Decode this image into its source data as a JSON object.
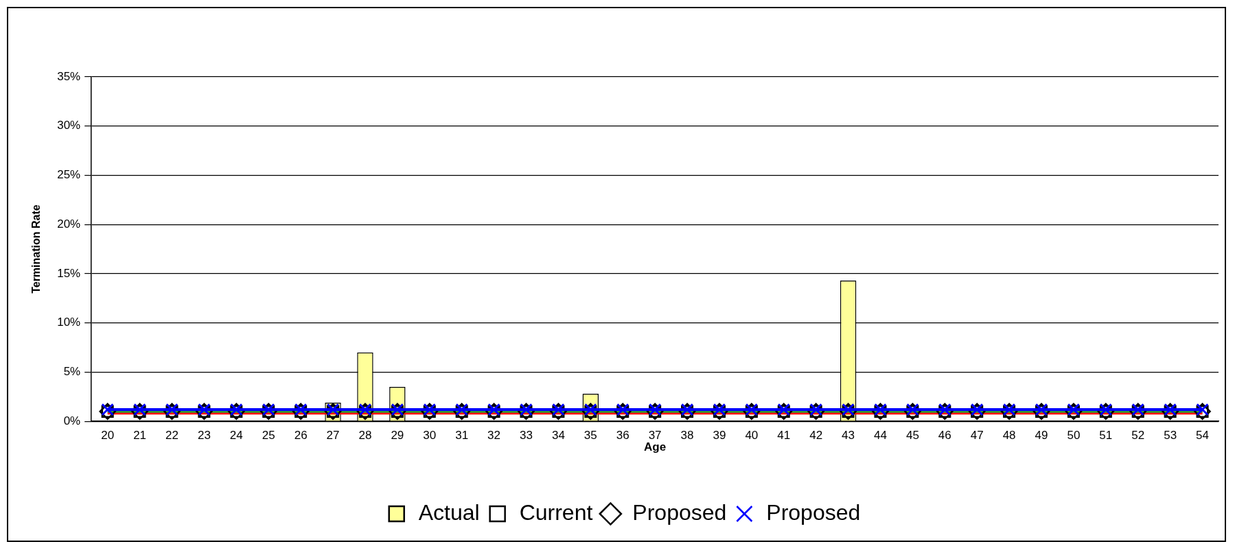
{
  "chart_data": {
    "type": "bar",
    "xlabel": "Age",
    "ylabel": "Termination Rate",
    "categories": [
      "20",
      "21",
      "22",
      "23",
      "24",
      "25",
      "26",
      "27",
      "28",
      "29",
      "30",
      "31",
      "32",
      "33",
      "34",
      "35",
      "36",
      "37",
      "38",
      "39",
      "40",
      "41",
      "42",
      "43",
      "44",
      "45",
      "46",
      "47",
      "48",
      "49",
      "50",
      "51",
      "52",
      "53",
      "54"
    ],
    "series": [
      {
        "name": "Actual",
        "color": "#ffff99",
        "values": [
          0,
          0,
          0,
          0,
          0,
          0,
          0,
          1.9,
          7.0,
          3.5,
          0,
          0,
          0,
          0,
          0,
          2.8,
          0,
          0,
          0,
          0,
          0,
          0,
          0,
          14.3,
          0,
          0,
          0,
          0,
          0,
          0,
          0,
          0,
          0,
          0,
          0
        ]
      },
      {
        "name": "Current",
        "type": "line",
        "color": "#ff0000",
        "marker": "square",
        "values": [
          1.0,
          1.0,
          1.0,
          1.0,
          1.0,
          1.0,
          1.0,
          1.0,
          1.0,
          1.0,
          1.0,
          1.0,
          1.0,
          1.0,
          1.0,
          1.0,
          1.0,
          1.0,
          1.0,
          1.0,
          1.0,
          1.0,
          1.0,
          1.0,
          1.0,
          1.0,
          1.0,
          1.0,
          1.0,
          1.0,
          1.0,
          1.0,
          1.0,
          1.0,
          1.0
        ]
      },
      {
        "name": "Proposed",
        "type": "line",
        "color": "#339933",
        "marker": "diamond",
        "values": [
          1.0,
          1.0,
          1.0,
          1.0,
          1.0,
          1.0,
          1.0,
          1.0,
          1.0,
          1.0,
          1.0,
          1.0,
          1.0,
          1.0,
          1.0,
          1.0,
          1.0,
          1.0,
          1.0,
          1.0,
          1.0,
          1.0,
          1.0,
          1.0,
          1.0,
          1.0,
          1.0,
          1.0,
          1.0,
          1.0,
          1.0,
          1.0,
          1.0,
          1.0,
          1.0
        ]
      },
      {
        "name": "Proposed",
        "type": "line",
        "color": "#0000ff",
        "marker": "cross",
        "values": [
          1.2,
          1.2,
          1.2,
          1.2,
          1.2,
          1.2,
          1.2,
          1.2,
          1.2,
          1.2,
          1.2,
          1.2,
          1.2,
          1.2,
          1.2,
          1.2,
          1.2,
          1.2,
          1.2,
          1.2,
          1.2,
          1.2,
          1.2,
          1.2,
          1.2,
          1.2,
          1.2,
          1.2,
          1.2,
          1.2,
          1.2,
          1.2,
          1.2,
          1.2,
          1.2
        ]
      }
    ],
    "ylim": [
      0,
      35
    ],
    "yticks": [
      {
        "value": 0,
        "label": "0%"
      },
      {
        "value": 5,
        "label": "5%"
      },
      {
        "value": 10,
        "label": "10%"
      },
      {
        "value": 15,
        "label": "15%"
      },
      {
        "value": 20,
        "label": "20%"
      },
      {
        "value": 25,
        "label": "25%"
      },
      {
        "value": 30,
        "label": "30%"
      },
      {
        "value": 35,
        "label": "35%"
      }
    ],
    "grid": "y",
    "legend": "bottom"
  }
}
